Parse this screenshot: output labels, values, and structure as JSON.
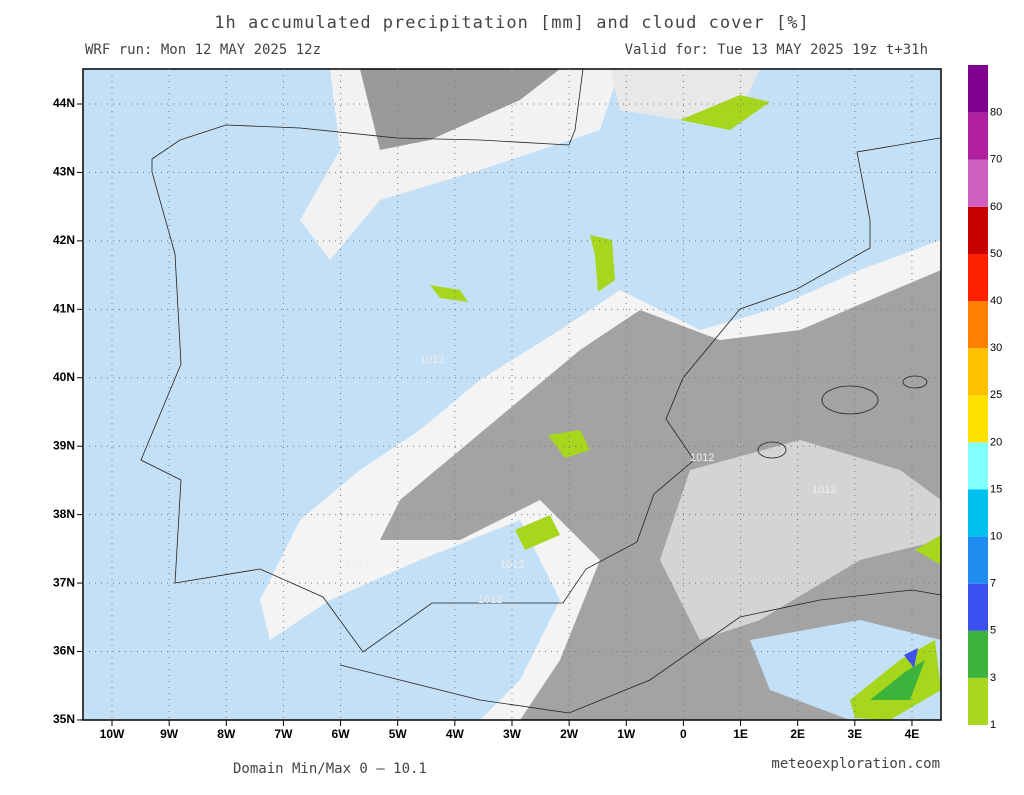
{
  "header": {
    "title": "1h accumulated precipitation [mm] and cloud cover [%]",
    "run": "WRF run: Mon 12 MAY 2025 12z",
    "valid": "Valid for: Tue 13 MAY 2025 19z  t+31h"
  },
  "map": {
    "lat_labels": [
      "44N",
      "43N",
      "42N",
      "41N",
      "40N",
      "39N",
      "38N",
      "37N",
      "36N",
      "35N"
    ],
    "lon_labels": [
      "10W",
      "9W",
      "8W",
      "7W",
      "6W",
      "5W",
      "4W",
      "3W",
      "2W",
      "1W",
      "0",
      "1E",
      "2E",
      "3E",
      "4E"
    ],
    "isobar_labels": [
      "1012",
      "1012",
      "1012",
      "1012",
      "1012",
      "1012"
    ]
  },
  "colorbar": {
    "levels": [
      1,
      3,
      5,
      7,
      10,
      15,
      20,
      25,
      30,
      40,
      50,
      60,
      70,
      80
    ],
    "colors": [
      "#a6d71c",
      "#3cb43c",
      "#3c50f0",
      "#1e8cf0",
      "#00c0f0",
      "#80ffff",
      "#ffe000",
      "#ffc000",
      "#ff8000",
      "#ff2000",
      "#c80000",
      "#d060c0",
      "#b020a0",
      "#800090"
    ]
  },
  "footer": {
    "minmax": "Domain Min/Max 0 — 10.1",
    "site": "meteoexploration.com"
  }
}
